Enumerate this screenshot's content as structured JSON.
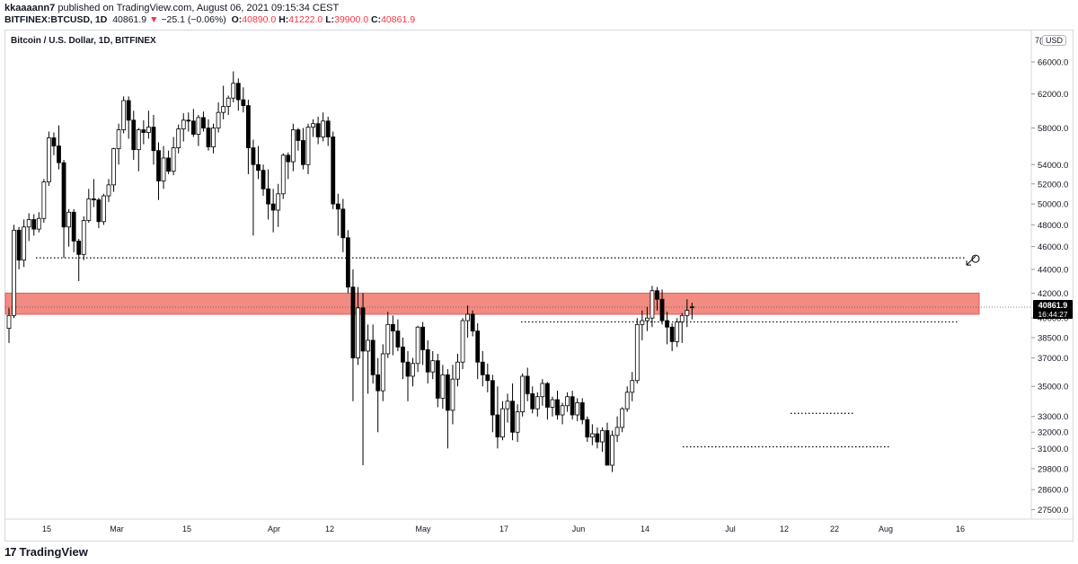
{
  "header": {
    "author": "kkaaaann7",
    "published_text": "published on TradingView.com, August 06, 2021 09:15:34 CEST",
    "symbol": "BITFINEX:BTCUSD, 1D",
    "last": "40861.9",
    "change_arrow": "▼",
    "change": "−25.1 (−0.06%)",
    "o_label": "O:",
    "o_value": "40890.0",
    "h_label": "H:",
    "h_value": "41222.0",
    "l_label": "L:",
    "l_value": "39900.0",
    "c_label": "C:",
    "c_value": "40861.9"
  },
  "chart_title": "Bitcoin / U.S. Dollar, 1D, BITFINEX",
  "currency_badge": "USD",
  "currency_prefix": "7(",
  "price_label": {
    "value": "40861.9",
    "countdown": "16:44:27"
  },
  "footer": {
    "brand": "TradingView",
    "mark": "17"
  },
  "colors": {
    "bull_body": "#ffffff",
    "bear_body": "#000000",
    "wick": "#000000",
    "zone_fill": "#f28b82",
    "zone_stroke": "#e05c55",
    "label_bg": "#000000"
  },
  "chart_data": {
    "type": "candlestick",
    "y_scale": "log",
    "ylim": [
      27000,
      68000
    ],
    "y_ticks": [
      "66000.0",
      "62000.0",
      "58000.0",
      "54000.0",
      "52000.0",
      "50000.0",
      "48000.0",
      "46000.0",
      "44000.0",
      "42000.0",
      "40000.0",
      "38500.0",
      "37000.0",
      "35000.0",
      "33000.0",
      "32000.0",
      "31000.0",
      "29800.0",
      "28600.0",
      "27500.0"
    ],
    "x_ticks": [
      "15",
      "Mar",
      "15",
      "Apr",
      "12",
      "May",
      "17",
      "Jun",
      "14",
      "Jul",
      "12",
      "22",
      "Aug",
      "16"
    ],
    "last_price": 40861.9,
    "resistance_zone": {
      "low": 40300,
      "high": 42000
    },
    "dotted_levels": [
      45000,
      39700,
      33200,
      31100
    ],
    "candles": [
      [
        39200,
        40800,
        38100,
        40200
      ],
      [
        40200,
        48000,
        40000,
        47500
      ],
      [
        47500,
        47800,
        44000,
        44800
      ],
      [
        44800,
        48500,
        44200,
        47800
      ],
      [
        47800,
        49100,
        46500,
        48500
      ],
      [
        48500,
        49000,
        47000,
        47600
      ],
      [
        47600,
        49200,
        47300,
        48600
      ],
      [
        48600,
        52500,
        48200,
        52200
      ],
      [
        52200,
        57600,
        51800,
        56900
      ],
      [
        56900,
        57500,
        55000,
        56000
      ],
      [
        56000,
        58300,
        53500,
        54200
      ],
      [
        54200,
        54500,
        45000,
        47800
      ],
      [
        47800,
        49500,
        46000,
        49200
      ],
      [
        49200,
        49500,
        45500,
        46500
      ],
      [
        46500,
        46700,
        43000,
        45300
      ],
      [
        45300,
        48800,
        44800,
        48400
      ],
      [
        48400,
        51500,
        48200,
        50500
      ],
      [
        50500,
        52500,
        49700,
        50400
      ],
      [
        50400,
        50600,
        47700,
        48300
      ],
      [
        48300,
        51000,
        48000,
        50800
      ],
      [
        50800,
        52500,
        50200,
        51900
      ],
      [
        51900,
        55800,
        51200,
        55700
      ],
      [
        55700,
        58500,
        54000,
        57800
      ],
      [
        57800,
        61700,
        57400,
        61200
      ],
      [
        61200,
        61700,
        56800,
        58900
      ],
      [
        58900,
        60000,
        54500,
        55600
      ],
      [
        55600,
        58000,
        53300,
        57800
      ],
      [
        57800,
        58900,
        56200,
        57500
      ],
      [
        57500,
        60000,
        56800,
        58100
      ],
      [
        58100,
        59500,
        54000,
        55500
      ],
      [
        55500,
        56400,
        50400,
        52300
      ],
      [
        52300,
        56000,
        51500,
        54700
      ],
      [
        54700,
        55500,
        53000,
        53300
      ],
      [
        53300,
        57000,
        52900,
        55800
      ],
      [
        55800,
        58400,
        55200,
        57900
      ],
      [
        57900,
        59700,
        56500,
        58900
      ],
      [
        58900,
        59800,
        57600,
        58800
      ],
      [
        58800,
        60200,
        57000,
        57300
      ],
      [
        57300,
        59500,
        56000,
        59200
      ],
      [
        59200,
        59900,
        57600,
        58000
      ],
      [
        58000,
        59000,
        55500,
        55900
      ],
      [
        55900,
        58500,
        55200,
        58000
      ],
      [
        58000,
        61000,
        57500,
        59800
      ],
      [
        59800,
        63000,
        59000,
        60500
      ],
      [
        60500,
        61800,
        59500,
        61500
      ],
      [
        61500,
        64800,
        61000,
        63300
      ],
      [
        63300,
        63900,
        60000,
        61300
      ],
      [
        61300,
        62800,
        59800,
        60600
      ],
      [
        60600,
        61300,
        53000,
        55800
      ],
      [
        55800,
        56700,
        47000,
        54000
      ],
      [
        54000,
        56000,
        52500,
        53400
      ],
      [
        53400,
        54000,
        50800,
        51500
      ],
      [
        51500,
        53500,
        48500,
        50000
      ],
      [
        50000,
        51500,
        47300,
        49400
      ],
      [
        49400,
        52000,
        47800,
        51000
      ],
      [
        51000,
        55200,
        50500,
        55000
      ],
      [
        55000,
        55300,
        52500,
        54300
      ],
      [
        54300,
        58500,
        53300,
        57800
      ],
      [
        57800,
        58000,
        55500,
        56600
      ],
      [
        56600,
        58000,
        53500,
        54000
      ],
      [
        54000,
        58500,
        53000,
        58100
      ],
      [
        58100,
        59000,
        57000,
        58500
      ],
      [
        58500,
        59300,
        56200,
        57000
      ],
      [
        57000,
        59800,
        56500,
        58800
      ],
      [
        58800,
        59300,
        56000,
        57000
      ],
      [
        57000,
        57600,
        49500,
        50000
      ],
      [
        50000,
        51000,
        47000,
        49500
      ],
      [
        49500,
        50500,
        45500,
        46800
      ],
      [
        46800,
        47500,
        42000,
        42500
      ],
      [
        42500,
        44000,
        34000,
        37000
      ],
      [
        37000,
        42500,
        36500,
        40800
      ],
      [
        40800,
        42000,
        30000,
        37500
      ],
      [
        37500,
        39500,
        34500,
        38300
      ],
      [
        38300,
        39500,
        35200,
        35800
      ],
      [
        35800,
        37000,
        32000,
        34700
      ],
      [
        34700,
        38000,
        34000,
        37300
      ],
      [
        37300,
        40500,
        37000,
        39500
      ],
      [
        39500,
        40200,
        37200,
        39000
      ],
      [
        39000,
        39900,
        37500,
        37800
      ],
      [
        37800,
        38500,
        35500,
        36700
      ],
      [
        36700,
        37500,
        34000,
        35700
      ],
      [
        35700,
        37000,
        35000,
        36600
      ],
      [
        36600,
        39400,
        36000,
        39300
      ],
      [
        39300,
        39700,
        36500,
        37600
      ],
      [
        37600,
        38300,
        35200,
        36000
      ],
      [
        36000,
        37500,
        35500,
        36800
      ],
      [
        36800,
        37300,
        33600,
        34200
      ],
      [
        34200,
        36500,
        33500,
        35800
      ],
      [
        35800,
        36200,
        31000,
        33400
      ],
      [
        33400,
        36500,
        32500,
        35500
      ],
      [
        35500,
        37300,
        35000,
        36700
      ],
      [
        36700,
        40000,
        36200,
        39800
      ],
      [
        39800,
        41000,
        38500,
        40300
      ],
      [
        40300,
        40600,
        38600,
        39000
      ],
      [
        39000,
        39600,
        35500,
        36700
      ],
      [
        36700,
        37500,
        35000,
        35800
      ],
      [
        35800,
        36600,
        34600,
        35400
      ],
      [
        35400,
        35800,
        32000,
        33100
      ],
      [
        33100,
        35000,
        31000,
        31700
      ],
      [
        31700,
        34000,
        31500,
        33500
      ],
      [
        33500,
        34500,
        32600,
        34000
      ],
      [
        34000,
        35200,
        31500,
        32000
      ],
      [
        32000,
        33800,
        31400,
        33300
      ],
      [
        33300,
        35900,
        33000,
        35700
      ],
      [
        35700,
        36300,
        34000,
        34500
      ],
      [
        34500,
        35000,
        33200,
        33500
      ],
      [
        33500,
        34600,
        33000,
        34300
      ],
      [
        34300,
        35500,
        33700,
        35200
      ],
      [
        35200,
        35300,
        32800,
        33600
      ],
      [
        33600,
        34300,
        33000,
        34100
      ],
      [
        34100,
        34700,
        32800,
        33100
      ],
      [
        33100,
        33900,
        32500,
        33700
      ],
      [
        33700,
        34600,
        33300,
        34300
      ],
      [
        34300,
        34700,
        32800,
        33100
      ],
      [
        33100,
        34200,
        32700,
        33900
      ],
      [
        33900,
        34200,
        32500,
        32800
      ],
      [
        32800,
        33000,
        31400,
        31700
      ],
      [
        31700,
        32500,
        31200,
        31900
      ],
      [
        31900,
        32300,
        31000,
        31400
      ],
      [
        31400,
        32300,
        30800,
        32100
      ],
      [
        32100,
        32600,
        30000,
        30000
      ],
      [
        30000,
        32100,
        29600,
        31800
      ],
      [
        31800,
        33000,
        31400,
        32300
      ],
      [
        32300,
        33600,
        32000,
        33500
      ],
      [
        33500,
        35000,
        33300,
        34600
      ],
      [
        34600,
        36000,
        34000,
        35400
      ],
      [
        35400,
        40000,
        35200,
        39500
      ],
      [
        39500,
        40600,
        38300,
        39800
      ],
      [
        39800,
        40900,
        39000,
        40000
      ],
      [
        40000,
        42600,
        39300,
        42200
      ],
      [
        42200,
        42500,
        40600,
        41500
      ],
      [
        41500,
        42300,
        39500,
        39800
      ],
      [
        39800,
        40500,
        38000,
        39300
      ],
      [
        39300,
        39600,
        37500,
        38200
      ],
      [
        38200,
        40000,
        37800,
        39700
      ],
      [
        39700,
        40400,
        38100,
        40200
      ],
      [
        40200,
        41500,
        39300,
        40600
      ],
      [
        40890,
        41222,
        39900,
        40861.9
      ]
    ]
  }
}
